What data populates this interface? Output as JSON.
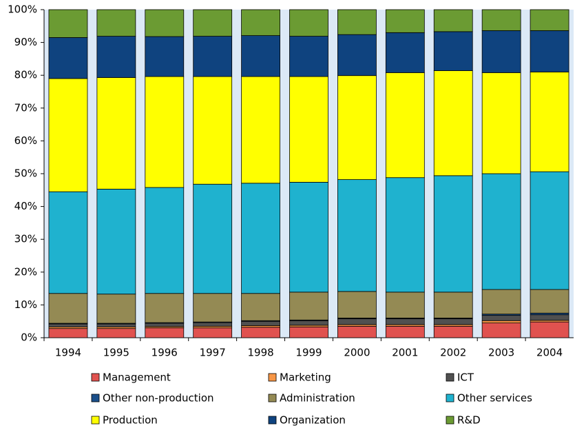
{
  "chart_data": {
    "type": "stacked_bar",
    "categories": [
      "1994",
      "1995",
      "1996",
      "1997",
      "1998",
      "1999",
      "2000",
      "2001",
      "2002",
      "2003",
      "2004"
    ],
    "series": [
      {
        "name": "Management",
        "color": "#e0524f",
        "values": [
          2.8,
          2.8,
          3.0,
          3.0,
          3.2,
          3.3,
          3.5,
          3.5,
          3.5,
          4.5,
          4.8
        ]
      },
      {
        "name": "Marketing",
        "color": "#f79646",
        "values": [
          0.5,
          0.5,
          0.4,
          0.5,
          0.5,
          0.5,
          0.5,
          0.5,
          0.5,
          0.7,
          0.5
        ]
      },
      {
        "name": "ICT",
        "color": "#505050",
        "values": [
          0.9,
          0.9,
          1.0,
          1.1,
          1.3,
          1.4,
          1.8,
          1.8,
          1.8,
          1.6,
          1.7
        ]
      },
      {
        "name": "Other non-production",
        "color": "#1b4f8a",
        "values": [
          0.2,
          0.2,
          0.2,
          0.2,
          0.2,
          0.2,
          0.2,
          0.2,
          0.2,
          0.4,
          0.5
        ]
      },
      {
        "name": "Administration",
        "color": "#948a54",
        "values": [
          9.1,
          8.9,
          8.9,
          8.7,
          8.3,
          8.5,
          8.1,
          7.9,
          7.9,
          7.5,
          7.2
        ]
      },
      {
        "name": "Other services",
        "color": "#1fb2cf",
        "values": [
          31.0,
          32.0,
          32.3,
          33.3,
          33.6,
          33.5,
          34.1,
          34.9,
          35.5,
          35.3,
          35.9
        ]
      },
      {
        "name": "Production",
        "color": "#ffff00",
        "values": [
          34.5,
          34.0,
          33.8,
          32.8,
          32.5,
          32.2,
          31.7,
          32.0,
          32.0,
          30.8,
          30.4
        ]
      },
      {
        "name": "Organization",
        "color": "#0f437f",
        "values": [
          12.5,
          12.6,
          12.2,
          12.3,
          12.5,
          12.3,
          12.5,
          12.2,
          11.9,
          12.8,
          12.6
        ]
      },
      {
        "name": "R&D",
        "color": "#6b9b33",
        "values": [
          8.5,
          8.1,
          8.2,
          8.1,
          7.9,
          8.1,
          7.6,
          7.0,
          6.7,
          6.4,
          6.4
        ]
      }
    ],
    "ylim": [
      0,
      100
    ],
    "yticks": [
      {
        "value": 0,
        "label": "0%"
      },
      {
        "value": 10,
        "label": "10%"
      },
      {
        "value": 20,
        "label": "20%"
      },
      {
        "value": 30,
        "label": "30%"
      },
      {
        "value": 40,
        "label": "40%"
      },
      {
        "value": 50,
        "label": "50%"
      },
      {
        "value": 60,
        "label": "60%"
      },
      {
        "value": 70,
        "label": "70%"
      },
      {
        "value": 80,
        "label": "80%"
      },
      {
        "value": 90,
        "label": "90%"
      },
      {
        "value": 100,
        "label": "100%"
      }
    ]
  }
}
